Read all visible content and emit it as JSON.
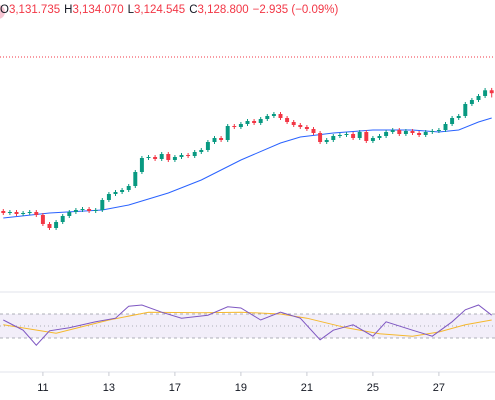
{
  "header": {
    "items": [
      {
        "label": "O",
        "value": "3,131.735"
      },
      {
        "label": "H",
        "value": "3,134.070"
      },
      {
        "label": "L",
        "value": "3,124.545"
      },
      {
        "label": "C",
        "value": "3,128.800"
      }
    ],
    "change": "−2.935 (−0.09%)"
  },
  "chart_data": [
    {
      "type": "candlestick",
      "x": [
        0,
        1,
        2,
        3,
        4,
        5,
        6,
        7,
        8,
        9,
        10,
        11,
        12,
        13,
        14,
        15,
        16,
        17,
        18,
        19,
        20,
        21,
        22,
        23,
        24,
        25,
        26,
        27,
        28,
        29,
        30,
        31,
        32,
        33,
        34,
        35,
        36,
        37,
        38,
        39,
        40,
        41,
        42,
        43,
        44,
        45,
        46,
        47,
        48,
        49,
        50,
        51,
        52,
        53,
        54,
        55,
        56,
        57,
        58,
        59,
        60,
        61,
        62,
        63,
        64,
        65,
        66,
        67,
        68,
        69,
        70,
        71,
        72,
        73,
        74
      ],
      "open": [
        3011,
        3009,
        3010,
        3008,
        3009,
        3010,
        3007,
        2998,
        2994,
        3000,
        3006,
        3010,
        3012,
        3013,
        3011,
        3012,
        3022,
        3028,
        3030,
        3032,
        3036,
        3050,
        3064,
        3065,
        3063,
        3068,
        3062,
        3065,
        3067,
        3066,
        3070,
        3072,
        3080,
        3084,
        3082,
        3096,
        3095,
        3098,
        3101,
        3099,
        3103,
        3106,
        3108,
        3104,
        3100,
        3097,
        3095,
        3093,
        3089,
        3080,
        3082,
        3086,
        3087,
        3088,
        3084,
        3090,
        3081,
        3084,
        3086,
        3090,
        3092,
        3088,
        3091,
        3089,
        3087,
        3090,
        3091,
        3092,
        3098,
        3104,
        3106,
        3118,
        3122,
        3126,
        3131.735
      ],
      "high": [
        3013,
        3012,
        3012,
        3011,
        3012,
        3012,
        3009,
        3000,
        3002,
        3008,
        3012,
        3014,
        3015,
        3015,
        3014,
        3024,
        3030,
        3032,
        3034,
        3038,
        3052,
        3066,
        3067,
        3067,
        3070,
        3070,
        3067,
        3069,
        3069,
        3072,
        3074,
        3082,
        3086,
        3086,
        3098,
        3098,
        3100,
        3103,
        3103,
        3105,
        3108,
        3110,
        3110,
        3106,
        3102,
        3099,
        3097,
        3095,
        3091,
        3084,
        3088,
        3089,
        3090,
        3090,
        3092,
        3092,
        3086,
        3088,
        3092,
        3094,
        3094,
        3093,
        3093,
        3091,
        3092,
        3093,
        3094,
        3100,
        3106,
        3108,
        3120,
        3124,
        3128,
        3134,
        3134.07
      ],
      "low": [
        3007,
        3007,
        3006,
        3006,
        3007,
        3005,
        2996,
        2992,
        2992,
        2998,
        3004,
        3008,
        3010,
        3009,
        3009,
        3010,
        3020,
        3026,
        3028,
        3030,
        3034,
        3048,
        3062,
        3061,
        3061,
        3060,
        3060,
        3063,
        3064,
        3064,
        3068,
        3070,
        3078,
        3080,
        3080,
        3093,
        3093,
        3096,
        3097,
        3097,
        3101,
        3104,
        3102,
        3098,
        3095,
        3093,
        3091,
        3087,
        3078,
        3078,
        3080,
        3084,
        3085,
        3082,
        3082,
        3079,
        3079,
        3082,
        3084,
        3088,
        3086,
        3086,
        3087,
        3085,
        3085,
        3088,
        3089,
        3090,
        3096,
        3102,
        3104,
        3116,
        3120,
        3124,
        3124.545
      ],
      "close": [
        3009,
        3010,
        3008,
        3009,
        3010,
        3007,
        2998,
        2994,
        3000,
        3006,
        3010,
        3012,
        3013,
        3011,
        3012,
        3022,
        3028,
        3030,
        3032,
        3036,
        3050,
        3064,
        3065,
        3063,
        3068,
        3062,
        3065,
        3067,
        3066,
        3070,
        3072,
        3080,
        3084,
        3082,
        3096,
        3095,
        3098,
        3101,
        3099,
        3103,
        3106,
        3108,
        3104,
        3100,
        3097,
        3095,
        3093,
        3089,
        3080,
        3082,
        3086,
        3087,
        3088,
        3084,
        3090,
        3081,
        3084,
        3086,
        3090,
        3092,
        3088,
        3091,
        3089,
        3087,
        3090,
        3091,
        3092,
        3098,
        3104,
        3106,
        3118,
        3122,
        3126,
        3131.7,
        3128.8
      ],
      "up_color": "#089981",
      "down_color": "#f23645",
      "series": [
        {
          "x": [
            0,
            7,
            15,
            19,
            25,
            30,
            36,
            42,
            45,
            50,
            56,
            62,
            66,
            69,
            72,
            74
          ],
          "values": [
            3004,
            3009,
            3012,
            3017,
            3029,
            3042,
            3062,
            3079,
            3085,
            3089,
            3092,
            3092,
            3090,
            3092,
            3100,
            3104
          ],
          "color": "#2962ff"
        }
      ],
      "reference_line": 3165,
      "reference_color": "#f23645",
      "xlim": [
        -0.5,
        74.5
      ],
      "ylim": [
        2932,
        3202
      ]
    },
    {
      "type": "line",
      "series": [
        {
          "x": [
            0,
            3,
            5,
            7,
            10,
            14,
            17,
            19,
            21,
            24,
            27,
            31,
            34,
            36,
            39,
            42,
            45,
            48,
            50,
            53,
            56,
            58,
            62,
            65,
            68,
            70,
            72,
            74
          ],
          "values": [
            60,
            43,
            18,
            42,
            47,
            57,
            63,
            83,
            85,
            73,
            63,
            68,
            82,
            80,
            60,
            73,
            63,
            27,
            43,
            52,
            33,
            57,
            43,
            33,
            57,
            77,
            85,
            68
          ],
          "color": "#7e57c2"
        },
        {
          "x": [
            0,
            8,
            16,
            22,
            30,
            36,
            42,
            46,
            52,
            57,
            62,
            66,
            70,
            74
          ],
          "values": [
            52,
            38,
            60,
            73,
            72,
            73,
            70,
            63,
            47,
            37,
            33,
            40,
            52,
            60
          ],
          "color": "#f5b82e"
        }
      ],
      "bands": [
        30,
        70
      ],
      "midline": 50,
      "band_color": "#7e57c2",
      "xlim": [
        -0.5,
        74.5
      ],
      "ylim": [
        0,
        100
      ],
      "xticks": [
        {
          "value": 6,
          "label": "11"
        },
        {
          "value": 16,
          "label": "13"
        },
        {
          "value": 26,
          "label": "17"
        },
        {
          "value": 36,
          "label": "19"
        },
        {
          "value": 46,
          "label": "21"
        },
        {
          "value": 56,
          "label": "25"
        },
        {
          "value": 66,
          "label": "27"
        }
      ]
    }
  ]
}
